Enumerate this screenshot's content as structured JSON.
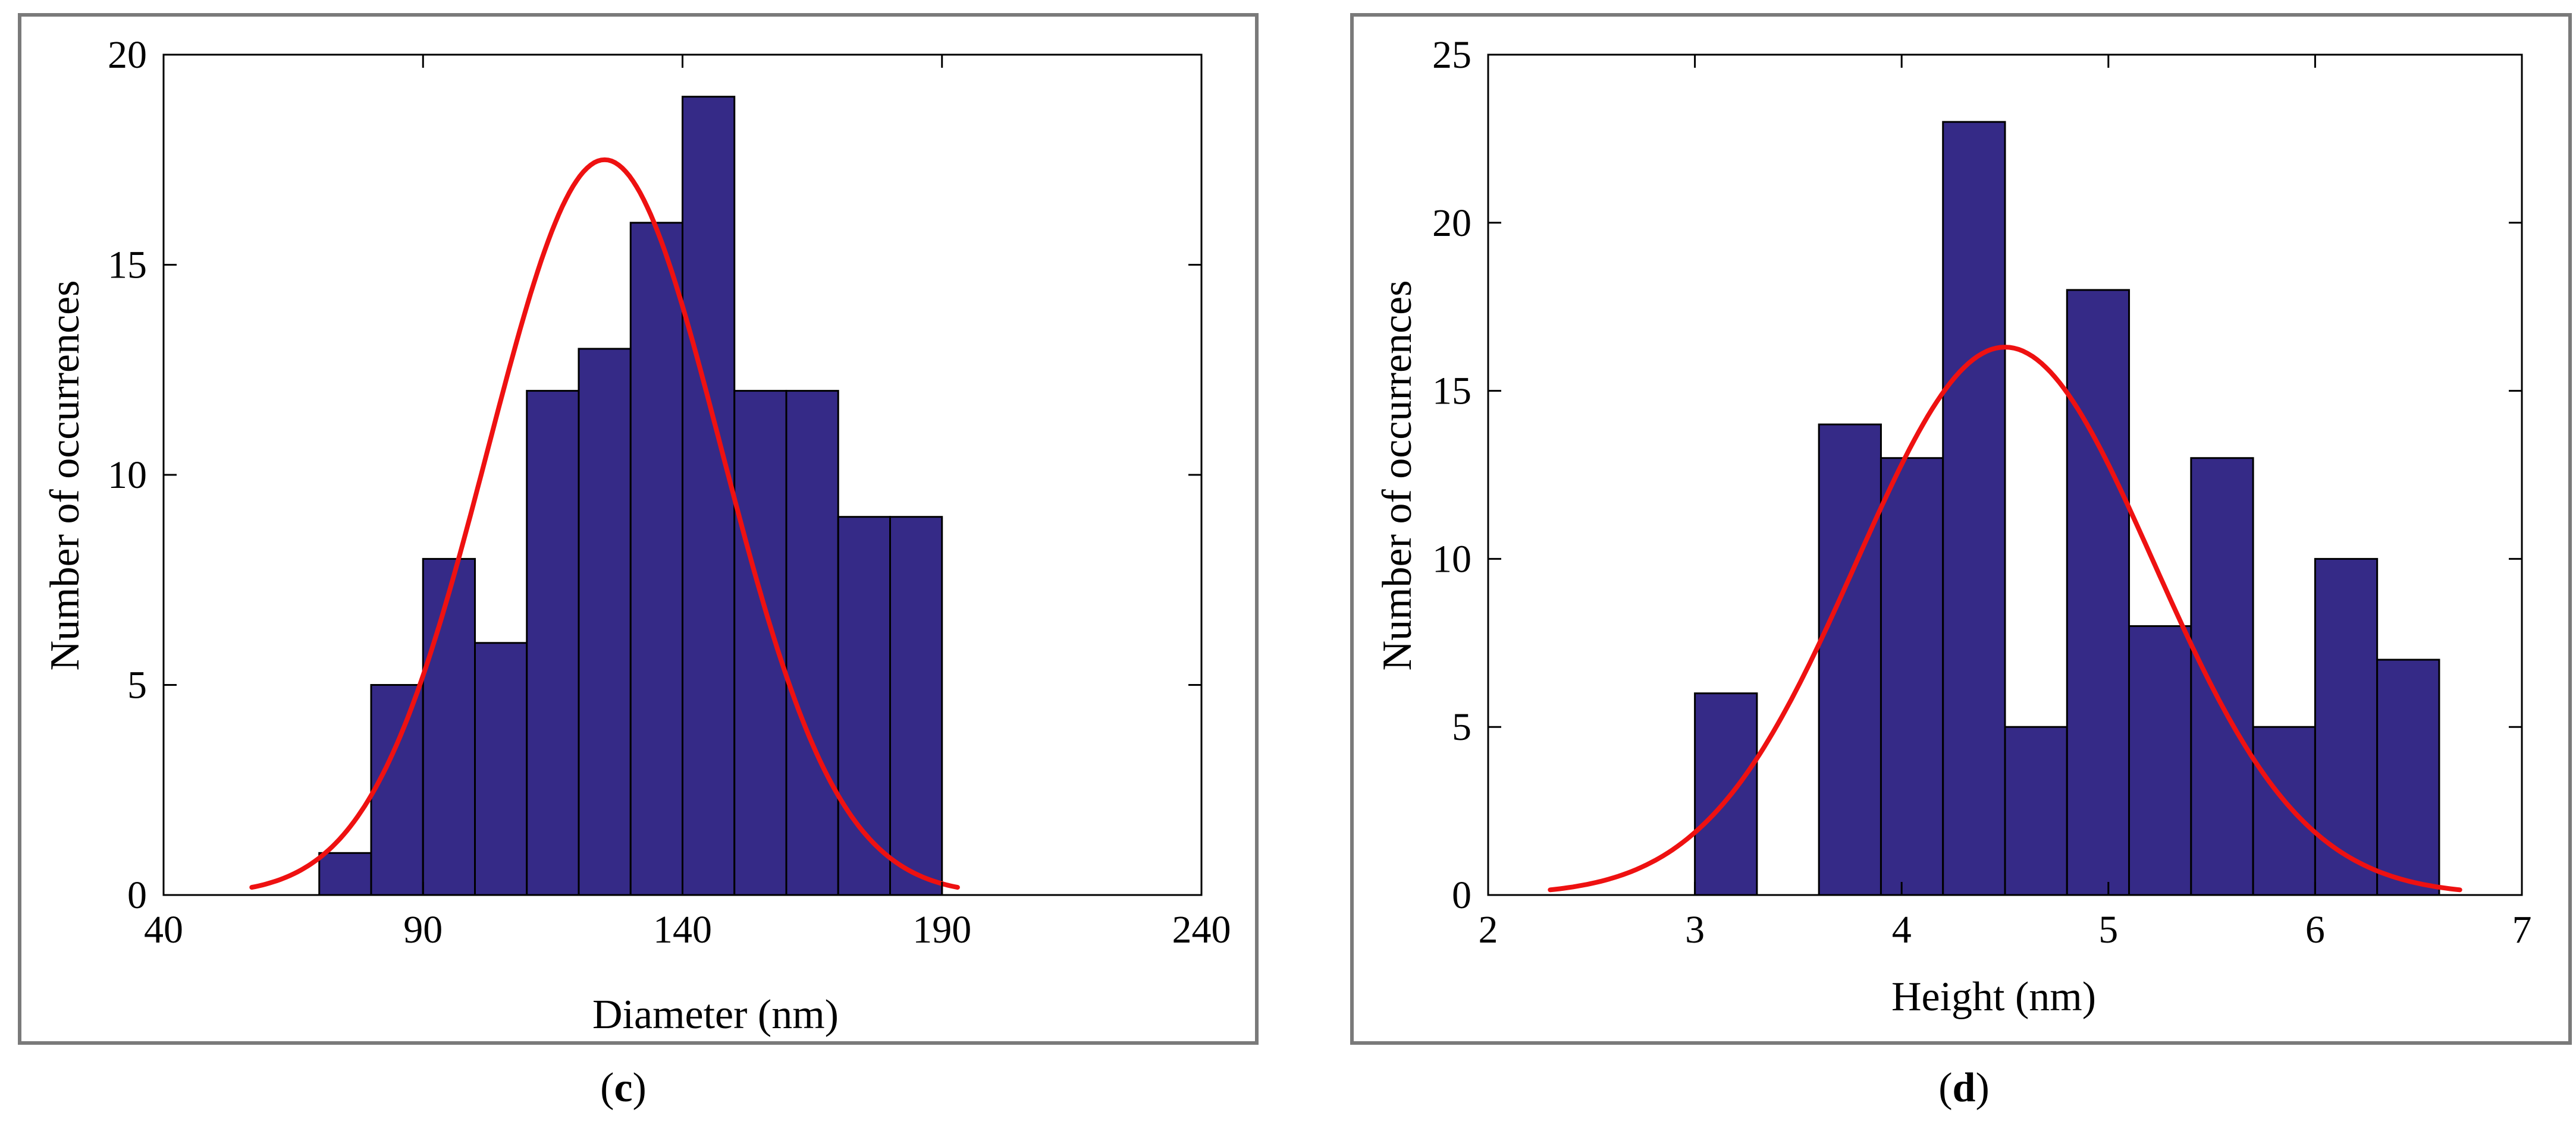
{
  "colors": {
    "bar_fill": "#352a87",
    "bar_edge": "#000000",
    "fit_curve": "#ee1111",
    "frame": "#7a7a7a"
  },
  "chart_data": [
    {
      "type": "bar",
      "panel": "c",
      "caption_open": "(",
      "caption_letter": "c",
      "caption_close": ")",
      "xlabel": "Diameter (nm)",
      "ylabel": "Number of occurrences",
      "xlim": [
        40,
        240
      ],
      "ylim": [
        0,
        20
      ],
      "xticks": [
        40,
        90,
        140,
        190,
        240
      ],
      "yticks": [
        0,
        5,
        10,
        15,
        20
      ],
      "bins": [
        {
          "x0": 70,
          "x1": 80,
          "count": 1
        },
        {
          "x0": 80,
          "x1": 90,
          "count": 5
        },
        {
          "x0": 90,
          "x1": 100,
          "count": 8
        },
        {
          "x0": 100,
          "x1": 110,
          "count": 6
        },
        {
          "x0": 110,
          "x1": 120,
          "count": 12
        },
        {
          "x0": 120,
          "x1": 130,
          "count": 13
        },
        {
          "x0": 130,
          "x1": 140,
          "count": 16
        },
        {
          "x0": 140,
          "x1": 150,
          "count": 19
        },
        {
          "x0": 150,
          "x1": 160,
          "count": 12
        },
        {
          "x0": 160,
          "x1": 170,
          "count": 12
        },
        {
          "x0": 170,
          "x1": 180,
          "count": 9
        },
        {
          "x0": 180,
          "x1": 190,
          "count": 9
        }
      ],
      "fit": {
        "type": "normal",
        "mean": 125,
        "sd": 22.5,
        "peak": 17.5,
        "x_start": 57,
        "x_end": 193
      }
    },
    {
      "type": "bar",
      "panel": "d",
      "caption_open": "(",
      "caption_letter": "d",
      "caption_close": ")",
      "xlabel": "Height (nm)",
      "ylabel": "Number of occurrences",
      "xlim": [
        2,
        7
      ],
      "ylim": [
        0,
        25
      ],
      "xticks": [
        2,
        3,
        4,
        5,
        6,
        7
      ],
      "yticks": [
        0,
        5,
        10,
        15,
        20,
        25
      ],
      "bins": [
        {
          "x0": 3.0,
          "x1": 3.3,
          "count": 6
        },
        {
          "x0": 3.3,
          "x1": 3.6,
          "count": 0
        },
        {
          "x0": 3.6,
          "x1": 3.9,
          "count": 14
        },
        {
          "x0": 3.9,
          "x1": 4.2,
          "count": 13
        },
        {
          "x0": 4.2,
          "x1": 4.5,
          "count": 23
        },
        {
          "x0": 4.5,
          "x1": 4.8,
          "count": 5
        },
        {
          "x0": 4.8,
          "x1": 5.1,
          "count": 18
        },
        {
          "x0": 5.1,
          "x1": 5.4,
          "count": 8
        },
        {
          "x0": 5.4,
          "x1": 5.7,
          "count": 13
        },
        {
          "x0": 5.7,
          "x1": 6.0,
          "count": 5
        },
        {
          "x0": 6.0,
          "x1": 6.3,
          "count": 10
        },
        {
          "x0": 6.3,
          "x1": 6.6,
          "count": 7
        }
      ],
      "fit": {
        "type": "normal",
        "mean": 4.5,
        "sd": 0.72,
        "peak": 16.3,
        "x_start": 2.3,
        "x_end": 6.7
      }
    }
  ]
}
